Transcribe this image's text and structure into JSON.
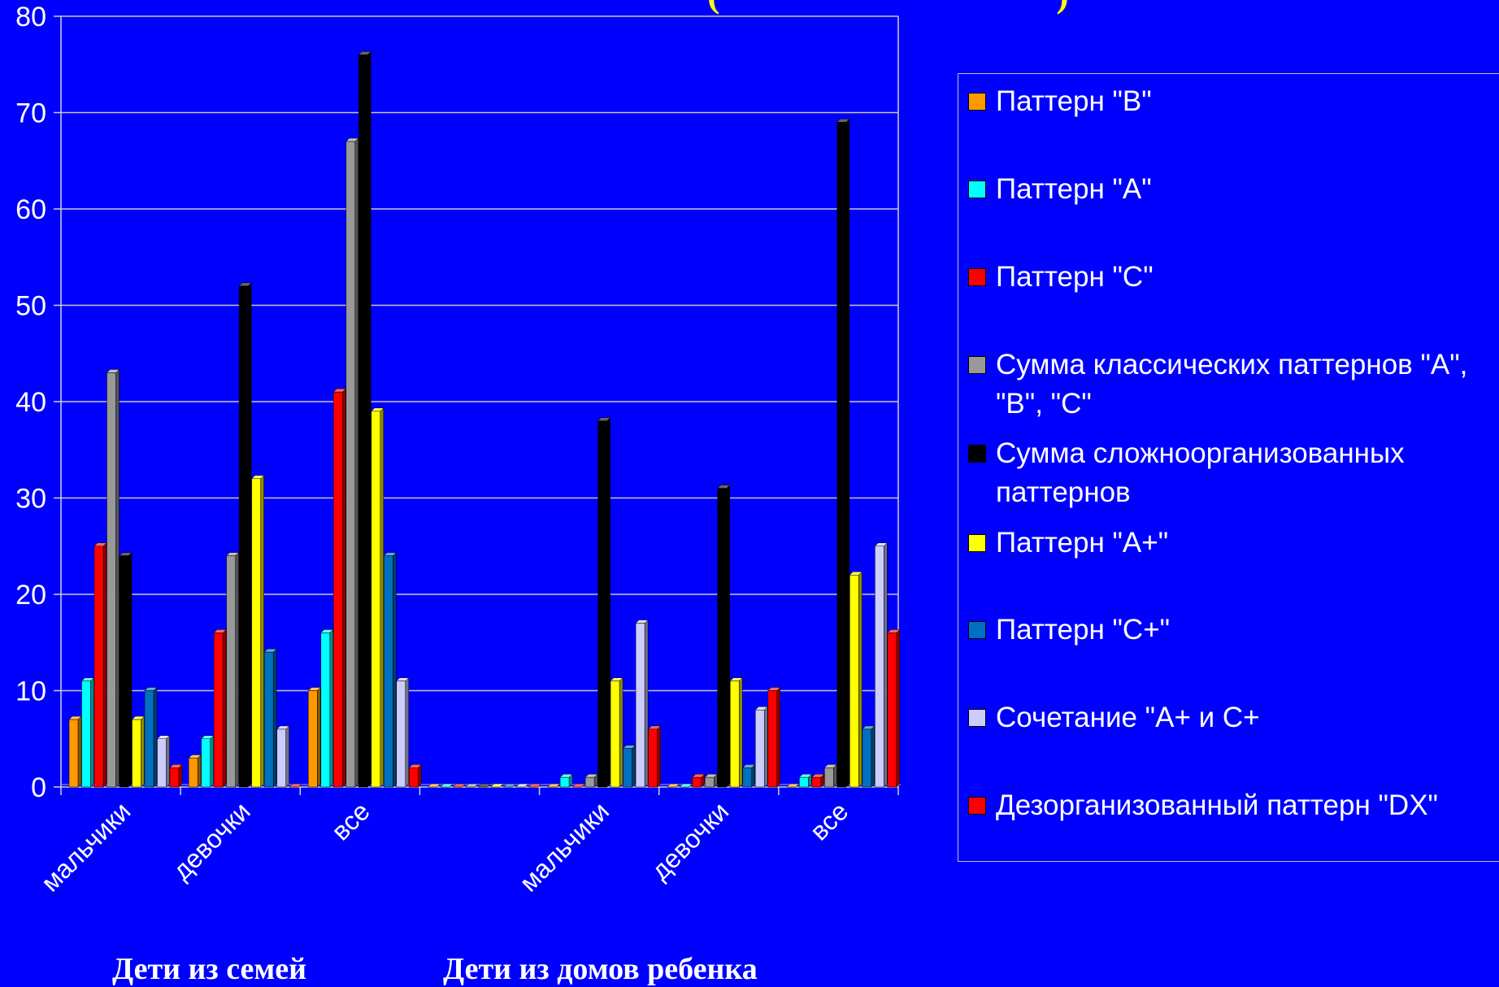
{
  "chart_data": {
    "type": "bar",
    "title": "",
    "title_fragment": "                    (                                    )",
    "xlabel": "",
    "ylabel": "",
    "ylim": [
      0,
      80
    ],
    "yticks": [
      0,
      10,
      20,
      30,
      40,
      50,
      60,
      70,
      80
    ],
    "grid": true,
    "legend_position": "right",
    "categories": [
      "мальчики",
      "девочки",
      "все",
      "",
      "мальчики",
      "девочки",
      "все"
    ],
    "group_captions": [
      "Дети из семей",
      "Дети из домов ребенка"
    ],
    "series": [
      {
        "name": "Паттерн \"B\"",
        "color": "#ff9900",
        "values": [
          7,
          3,
          10,
          0,
          0,
          0,
          0
        ]
      },
      {
        "name": "Паттерн \"A\"",
        "color": "#00ffff",
        "values": [
          11,
          5,
          16,
          0,
          1,
          0,
          1
        ]
      },
      {
        "name": "Паттерн \"C\"",
        "color": "#ff0000",
        "values": [
          25,
          16,
          41,
          0,
          0,
          1,
          1
        ]
      },
      {
        "name": "Сумма классических паттернов \"A\", \"B\", \"C\"",
        "color": "#999999",
        "values": [
          43,
          24,
          67,
          0,
          1,
          1,
          2
        ]
      },
      {
        "name": "Сумма сложноорганизованных паттернов",
        "color": "#000000",
        "values": [
          24,
          52,
          76,
          0,
          38,
          31,
          69
        ]
      },
      {
        "name": "Паттерн \"A+\"",
        "color": "#ffff00",
        "values": [
          7,
          32,
          39,
          0,
          11,
          11,
          22
        ]
      },
      {
        "name": "Паттерн \"C+\"",
        "color": "#0070c0",
        "values": [
          10,
          14,
          24,
          0,
          4,
          2,
          6
        ]
      },
      {
        "name": "Сочетание \"A+ и C+",
        "color": "#ccccff",
        "values": [
          5,
          6,
          11,
          0,
          17,
          8,
          25
        ]
      },
      {
        "name": "Дезорганизованный паттерн \"DX\"",
        "color": "#ff0000",
        "values": [
          2,
          0,
          2,
          0,
          6,
          10,
          16
        ]
      }
    ]
  }
}
